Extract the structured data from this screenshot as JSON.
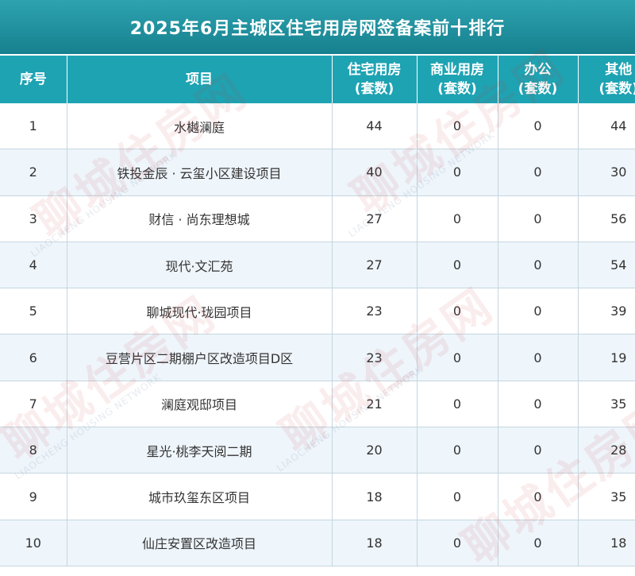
{
  "title": "2025年6月主城区住宅用房网签备案前十排行",
  "headers": {
    "rank": "序号",
    "project": "项目",
    "residential": [
      "住宅用房",
      "(套数)"
    ],
    "commercial": [
      "商业用房",
      "(套数)"
    ],
    "office": [
      "办公",
      "(套数)"
    ],
    "other": [
      "其他",
      "(套数)"
    ]
  },
  "rows": [
    {
      "rank": "1",
      "project": "水樾澜庭",
      "residential": "44",
      "commercial": "0",
      "office": "0",
      "other": "44"
    },
    {
      "rank": "2",
      "project": "铁投金辰 · 云玺小区建设项目",
      "residential": "40",
      "commercial": "0",
      "office": "0",
      "other": "30"
    },
    {
      "rank": "3",
      "project": "财信 · 尚东理想城",
      "residential": "27",
      "commercial": "0",
      "office": "0",
      "other": "56"
    },
    {
      "rank": "4",
      "project": "现代·文汇苑",
      "residential": "27",
      "commercial": "0",
      "office": "0",
      "other": "54"
    },
    {
      "rank": "5",
      "project": "聊城现代·珑园项目",
      "residential": "23",
      "commercial": "0",
      "office": "0",
      "other": "39"
    },
    {
      "rank": "6",
      "project": "豆营片区二期棚户区改造项目D区",
      "residential": "23",
      "commercial": "0",
      "office": "0",
      "other": "19"
    },
    {
      "rank": "7",
      "project": "澜庭观邸项目",
      "residential": "21",
      "commercial": "0",
      "office": "0",
      "other": "35"
    },
    {
      "rank": "8",
      "project": "星光·桃李天阅二期",
      "residential": "20",
      "commercial": "0",
      "office": "0",
      "other": "28"
    },
    {
      "rank": "9",
      "project": "城市玖玺东区项目",
      "residential": "18",
      "commercial": "0",
      "office": "0",
      "other": "35"
    },
    {
      "rank": "10",
      "project": "仙庄安置区改造项目",
      "residential": "18",
      "commercial": "0",
      "office": "0",
      "other": "18"
    }
  ],
  "watermark": {
    "text": "聊城住房网",
    "subtext": "LIAOCHENG HOUSING NETWORK"
  }
}
